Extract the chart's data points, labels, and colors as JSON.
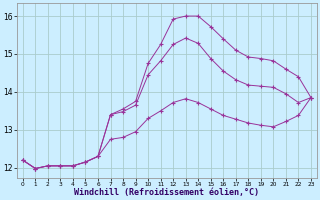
{
  "background_color": "#cceeff",
  "grid_color": "#aacccc",
  "line_color": "#993399",
  "xlabel": "Windchill (Refroidissement éolien,°C)",
  "xlim": [
    -0.5,
    23.5
  ],
  "ylim": [
    11.72,
    16.35
  ],
  "yticks": [
    12,
    13,
    14,
    15,
    16
  ],
  "xticks": [
    0,
    1,
    2,
    3,
    4,
    5,
    6,
    7,
    8,
    9,
    10,
    11,
    12,
    13,
    14,
    15,
    16,
    17,
    18,
    19,
    20,
    21,
    22,
    23
  ],
  "line1_x": [
    0,
    1,
    2,
    3,
    4,
    5,
    6,
    7,
    8,
    9,
    10,
    11,
    12,
    13,
    14,
    15,
    16,
    17,
    18,
    19,
    20,
    21,
    22,
    23
  ],
  "line1_y": [
    12.2,
    11.98,
    12.05,
    12.05,
    12.05,
    12.15,
    12.3,
    13.4,
    13.55,
    13.75,
    14.75,
    15.25,
    15.92,
    16.0,
    16.0,
    15.72,
    15.4,
    15.1,
    14.92,
    14.88,
    14.82,
    14.6,
    14.4,
    13.85
  ],
  "line2_x": [
    0,
    1,
    2,
    3,
    4,
    5,
    6,
    7,
    8,
    9,
    10,
    11,
    12,
    13,
    14,
    15,
    16,
    17,
    18,
    19,
    20,
    21,
    22,
    23
  ],
  "line2_y": [
    12.2,
    11.98,
    12.05,
    12.05,
    12.05,
    12.15,
    12.3,
    12.75,
    12.8,
    12.95,
    13.3,
    13.5,
    13.72,
    13.82,
    13.72,
    13.55,
    13.38,
    13.28,
    13.18,
    13.12,
    13.08,
    13.22,
    13.38,
    13.85
  ],
  "line3_x": [
    0,
    1,
    2,
    3,
    4,
    5,
    6,
    7,
    8,
    9,
    10,
    11,
    12,
    13,
    14,
    15,
    16,
    17,
    18,
    19,
    20,
    21,
    22,
    23
  ],
  "line3_y": [
    12.2,
    11.98,
    12.05,
    12.05,
    12.05,
    12.15,
    12.3,
    13.4,
    13.48,
    13.65,
    14.45,
    14.82,
    15.25,
    15.42,
    15.28,
    14.88,
    14.55,
    14.32,
    14.18,
    14.15,
    14.12,
    13.95,
    13.72,
    13.85
  ]
}
